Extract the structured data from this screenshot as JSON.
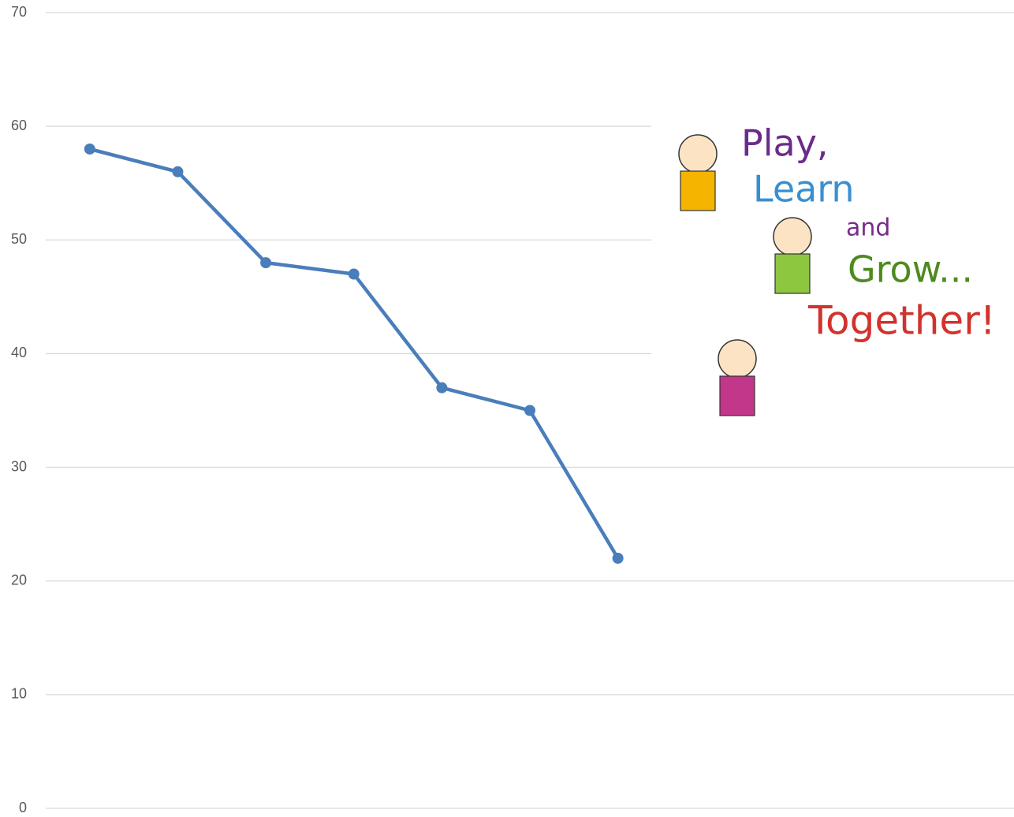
{
  "chart_data": {
    "type": "line",
    "categories": [
      null,
      null,
      null,
      null,
      null,
      null,
      null,
      null,
      null,
      null,
      null
    ],
    "series": [
      {
        "color": "#4a7ebb",
        "values": [
          58,
          56,
          48,
          47,
          37,
          35,
          22,
          null,
          null,
          null,
          null
        ]
      }
    ],
    "ylim": [
      0,
      70
    ],
    "yticks": [
      0,
      10,
      20,
      30,
      40,
      50,
      60,
      70
    ],
    "grid": true,
    "annotations": [
      {
        "text": "Play,",
        "color": "#6a2c8a"
      },
      {
        "text": "Learn",
        "color": "#3a8fd0"
      },
      {
        "text": "and",
        "color": "#7a2a8a"
      },
      {
        "text": "Grow...",
        "color": "#4e8a1e"
      },
      {
        "text": "Together!",
        "color": "#d2322d"
      }
    ]
  }
}
